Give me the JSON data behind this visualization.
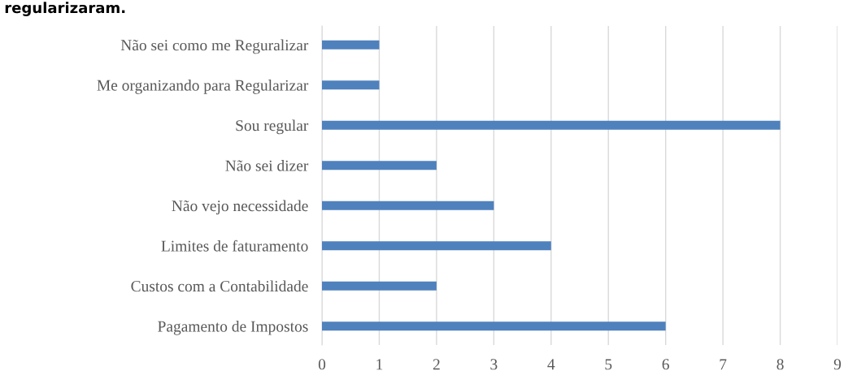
{
  "chart_data": {
    "type": "bar",
    "orientation": "horizontal",
    "title": "regularizaram.",
    "categories": [
      "Não sei como me Reguralizar",
      "Me organizando para Regularizar",
      "Sou regular",
      "Não sei dizer",
      "Não vejo necessidade",
      "Limites de faturamento",
      "Custos com a Contabilidade",
      "Pagamento de Impostos"
    ],
    "values": [
      1,
      1,
      8,
      2,
      3,
      4,
      2,
      6
    ],
    "color": "#4f81bd",
    "xlim": [
      0,
      9
    ],
    "xticks": [
      0,
      1,
      2,
      3,
      4,
      5,
      6,
      7,
      8,
      9
    ],
    "grid": "x",
    "legend": false
  }
}
